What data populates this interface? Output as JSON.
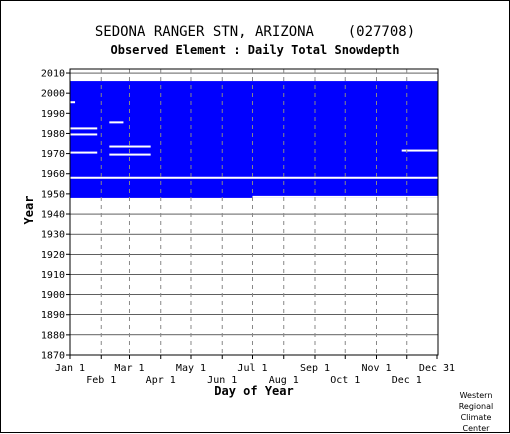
{
  "chart_data": {
    "type": "heatmap",
    "title": "SEDONA RANGER STN, ARIZONA    (027708)",
    "subtitle": "Observed Element : Daily Total Snowdepth",
    "xlabel": "Day of Year",
    "ylabel": "Year",
    "x_tick_labels_top": [
      "Jan 1",
      "Mar 1",
      "May 1",
      "Jul 1",
      "Sep 1",
      "Nov 1",
      "Dec 31"
    ],
    "x_tick_labels_bottom": [
      "Feb 1",
      "Apr 1",
      "Jun 1",
      "Aug 1",
      "Oct 1",
      "Dec 1"
    ],
    "x_ticks_day": [
      1,
      32,
      60,
      91,
      121,
      152,
      182,
      213,
      244,
      274,
      305,
      335,
      365
    ],
    "y_ticks": [
      1870,
      1880,
      1890,
      1900,
      1910,
      1920,
      1930,
      1940,
      1950,
      1960,
      1970,
      1980,
      1990,
      2000,
      2010
    ],
    "ylim": [
      1870,
      2012
    ],
    "xlim": [
      1,
      365
    ],
    "data_color": "#0000ff",
    "grid": true,
    "coverage": [
      {
        "year_start": 1948,
        "year_end": 2005,
        "day_start": 1,
        "day_end": 365,
        "status": "observed"
      },
      {
        "year_start": 1948,
        "year_end": 1948,
        "day_start": 182,
        "day_end": 365,
        "status": "missing"
      },
      {
        "year_start": 1957.5,
        "year_end": 1957.5,
        "day_start": 1,
        "day_end": 365,
        "status": "missing"
      }
    ],
    "missing_segments": [
      {
        "year": 1995,
        "day_start": 1,
        "day_end": 5
      },
      {
        "year": 1982,
        "day_start": 1,
        "day_end": 27
      },
      {
        "year": 1979,
        "day_start": 1,
        "day_end": 27
      },
      {
        "year": 1970,
        "day_start": 1,
        "day_end": 27
      },
      {
        "year": 1985,
        "day_start": 40,
        "day_end": 53
      },
      {
        "year": 1973,
        "day_start": 40,
        "day_end": 80
      },
      {
        "year": 1969,
        "day_start": 40,
        "day_end": 80
      },
      {
        "year": 1971,
        "day_start": 330,
        "day_end": 365
      }
    ]
  },
  "credit": [
    "Western",
    "Regional",
    "Climate",
    "Center"
  ]
}
